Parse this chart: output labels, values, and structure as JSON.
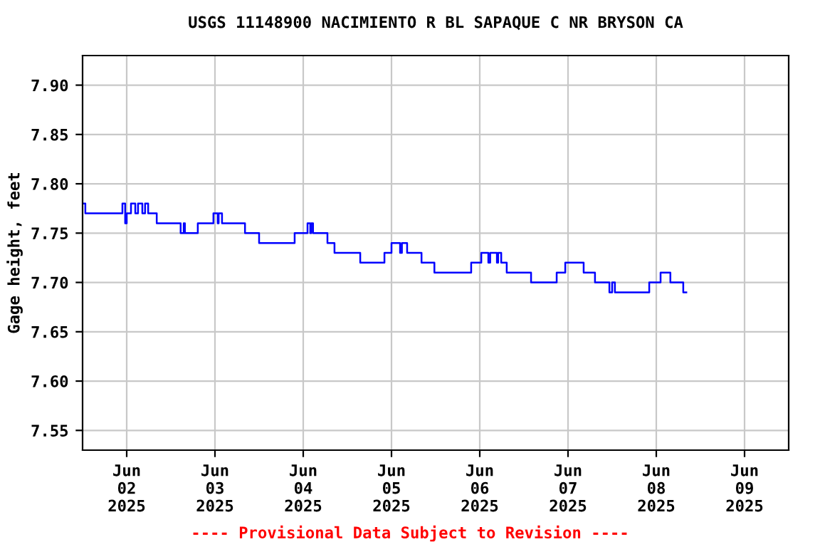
{
  "chart_data": {
    "type": "step",
    "title": "USGS 11148900 NACIMIENTO R BL SAPAQUE C NR BRYSON CA",
    "ylabel": "Gage height, feet",
    "annotations": [
      "---- Provisional Data Subject to Revision ----"
    ],
    "x": [
      "2025-06-01T12:00",
      "2025-06-01T12:45",
      "2025-06-01T22:50",
      "2025-06-01T23:35",
      "2025-06-02T00:00",
      "2025-06-02T01:10",
      "2025-06-02T02:20",
      "2025-06-02T03:05",
      "2025-06-02T04:15",
      "2025-06-02T05:00",
      "2025-06-02T05:50",
      "2025-06-02T08:10",
      "2025-06-02T14:40",
      "2025-06-02T15:30",
      "2025-06-02T15:50",
      "2025-06-02T19:20",
      "2025-06-02T23:35",
      "2025-06-03T00:45",
      "2025-06-03T01:00",
      "2025-06-03T01:55",
      "2025-06-03T08:10",
      "2025-06-03T12:00",
      "2025-06-03T21:40",
      "2025-06-04T01:10",
      "2025-06-04T01:55",
      "2025-06-04T02:10",
      "2025-06-04T02:40",
      "2025-06-04T06:35",
      "2025-06-04T08:30",
      "2025-06-04T15:30",
      "2025-06-04T22:05",
      "2025-06-05T00:00",
      "2025-06-05T02:20",
      "2025-06-05T02:50",
      "2025-06-05T04:15",
      "2025-06-05T08:10",
      "2025-06-05T11:40",
      "2025-06-05T21:40",
      "2025-06-06T00:25",
      "2025-06-06T02:20",
      "2025-06-06T02:50",
      "2025-06-06T04:40",
      "2025-06-06T05:00",
      "2025-06-06T05:50",
      "2025-06-06T07:20",
      "2025-06-06T13:57",
      "2025-06-06T20:55",
      "2025-06-06T23:15",
      "2025-06-07T04:15",
      "2025-06-07T07:20",
      "2025-06-07T11:15",
      "2025-06-07T12:00",
      "2025-06-07T12:45",
      "2025-06-07T22:05",
      "2025-06-08T01:10",
      "2025-06-08T03:50",
      "2025-06-08T07:20",
      "2025-06-08T08:10"
    ],
    "series": [
      {
        "color": "#0000ff",
        "values": [
          7.78,
          7.77,
          7.78,
          7.76,
          7.77,
          7.78,
          7.77,
          7.78,
          7.77,
          7.78,
          7.77,
          7.76,
          7.75,
          7.76,
          7.75,
          7.76,
          7.77,
          7.76,
          7.77,
          7.76,
          7.75,
          7.74,
          7.75,
          7.76,
          7.75,
          7.76,
          7.75,
          7.74,
          7.73,
          7.72,
          7.73,
          7.74,
          7.73,
          7.74,
          7.73,
          7.72,
          7.71,
          7.72,
          7.73,
          7.72,
          7.73,
          7.72,
          7.73,
          7.72,
          7.71,
          7.7,
          7.71,
          7.72,
          7.71,
          7.7,
          7.69,
          7.7,
          7.69,
          7.7,
          7.71,
          7.7,
          7.69,
          7.69
        ]
      }
    ],
    "xlim": [
      "2025-06-01T12:00",
      "2025-06-09T12:00"
    ],
    "xticks": [
      {
        "value": "2025-06-02",
        "label": "Jun\n02\n2025"
      },
      {
        "value": "2025-06-03",
        "label": "Jun\n03\n2025"
      },
      {
        "value": "2025-06-04",
        "label": "Jun\n04\n2025"
      },
      {
        "value": "2025-06-05",
        "label": "Jun\n05\n2025"
      },
      {
        "value": "2025-06-06",
        "label": "Jun\n06\n2025"
      },
      {
        "value": "2025-06-07",
        "label": "Jun\n07\n2025"
      },
      {
        "value": "2025-06-08",
        "label": "Jun\n08\n2025"
      },
      {
        "value": "2025-06-09",
        "label": "Jun\n09\n2025"
      }
    ],
    "ylim": [
      7.53,
      7.93
    ],
    "yticks": [
      {
        "value": 7.55,
        "label": "7.55"
      },
      {
        "value": 7.6,
        "label": "7.60"
      },
      {
        "value": 7.65,
        "label": "7.65"
      },
      {
        "value": 7.7,
        "label": "7.70"
      },
      {
        "value": 7.75,
        "label": "7.75"
      },
      {
        "value": 7.8,
        "label": "7.80"
      },
      {
        "value": 7.85,
        "label": "7.85"
      },
      {
        "value": 7.9,
        "label": "7.90"
      }
    ],
    "grid": true,
    "legend": false,
    "line_style": "solid",
    "marker": "none"
  }
}
